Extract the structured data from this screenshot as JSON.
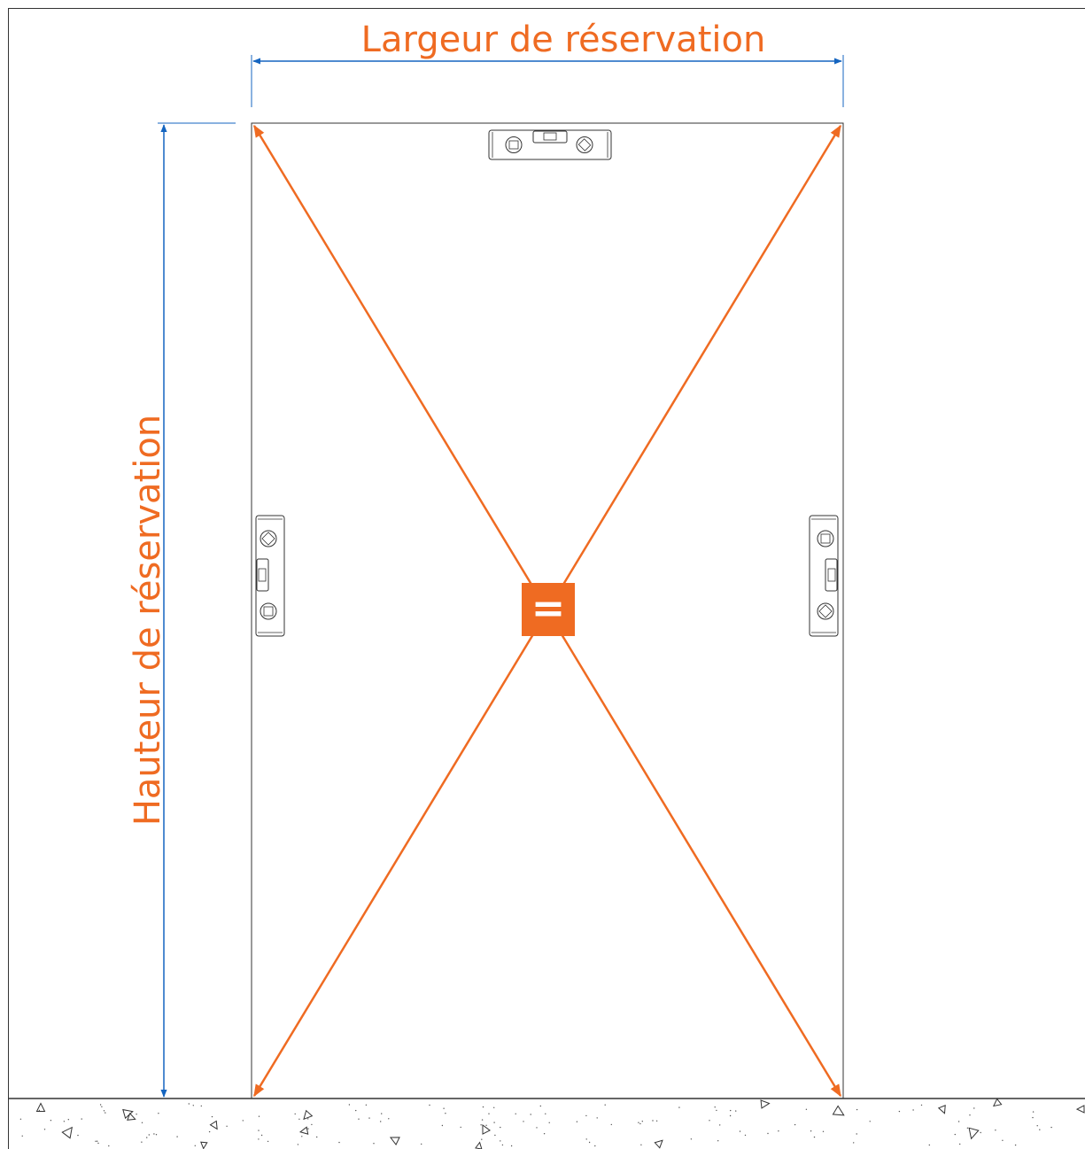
{
  "labels": {
    "width": "Largeur de réservation",
    "height": "Hauteur de réservation",
    "equal": "="
  },
  "colors": {
    "accent": "#ef6b22",
    "dimension": "#1565c0",
    "outline": "#333333",
    "background": "#ffffff"
  },
  "icons": {
    "level_tool": "spirit-level-icon",
    "floor": "concrete-floor-pattern"
  }
}
